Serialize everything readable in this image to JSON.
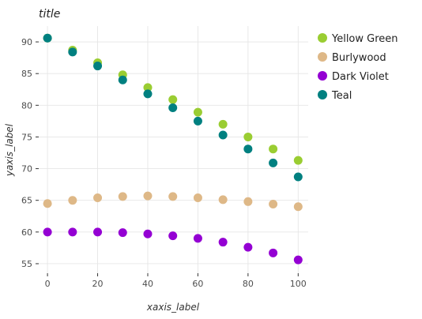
{
  "chart_data": {
    "type": "scatter",
    "title": "title",
    "xlabel": "xaxis_label",
    "ylabel": "yaxis_label",
    "xlim": [
      -3.5,
      104
    ],
    "ylim": [
      53.5,
      92.5
    ],
    "xticks": [
      0,
      20,
      40,
      60,
      80,
      100
    ],
    "yticks": [
      55,
      60,
      65,
      70,
      75,
      80,
      85,
      90
    ],
    "grid": true,
    "legend_position": "right",
    "x": [
      0,
      10,
      20,
      30,
      40,
      50,
      60,
      70,
      80,
      90,
      100
    ],
    "series": [
      {
        "name": "Yellow Green",
        "color": "#9acd32",
        "values": [
          90.6,
          88.7,
          86.7,
          84.8,
          82.8,
          80.9,
          78.9,
          77.0,
          75.0,
          73.1,
          71.3
        ]
      },
      {
        "name": "Burlywood",
        "color": "#deb887",
        "values": [
          64.5,
          65.0,
          65.4,
          65.6,
          65.7,
          65.6,
          65.4,
          65.1,
          64.8,
          64.4,
          64.0
        ]
      },
      {
        "name": "Dark Violet",
        "color": "#9400d3",
        "values": [
          60.0,
          60.0,
          60.0,
          59.9,
          59.7,
          59.4,
          59.0,
          58.4,
          57.6,
          56.7,
          55.6
        ]
      },
      {
        "name": "Teal",
        "color": "#008080",
        "values": [
          90.6,
          88.4,
          86.2,
          84.0,
          81.8,
          79.6,
          77.5,
          75.3,
          73.1,
          70.9,
          68.7
        ]
      }
    ]
  }
}
